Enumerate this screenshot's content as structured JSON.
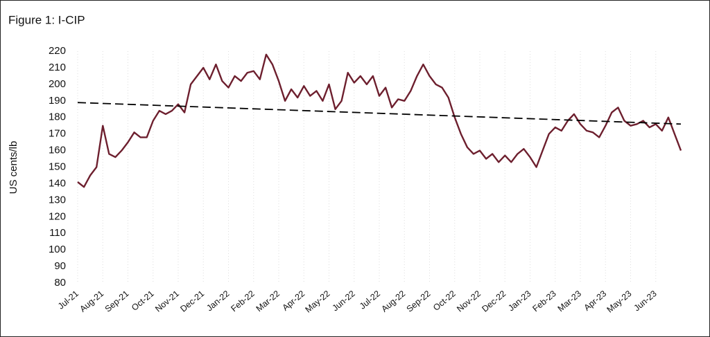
{
  "chart_data": {
    "type": "line",
    "title": "Figure 1: I-CIP",
    "y_label": "US cents/lb",
    "categories": [
      "Jul-21",
      null,
      null,
      null,
      "Aug-21",
      null,
      null,
      null,
      "Sep-21",
      null,
      null,
      null,
      "Oct-21",
      null,
      null,
      null,
      "Nov-21",
      null,
      null,
      null,
      "Dec-21",
      null,
      null,
      null,
      "Jan-22",
      null,
      null,
      null,
      "Feb-22",
      null,
      null,
      null,
      "Mar-22",
      null,
      null,
      null,
      "Apr-22",
      null,
      null,
      null,
      "May-22",
      null,
      null,
      null,
      "Jun-22",
      null,
      null,
      null,
      "Jul-22",
      null,
      null,
      null,
      "Aug-22",
      null,
      null,
      null,
      "Sep-22",
      null,
      null,
      null,
      "Oct-22",
      null,
      null,
      null,
      "Nov-22",
      null,
      null,
      null,
      "Dec-22",
      null,
      null,
      null,
      "Jan-23",
      null,
      null,
      null,
      "Feb-23",
      null,
      null,
      null,
      "Mar-23",
      null,
      null,
      null,
      "Apr-23",
      null,
      null,
      null,
      "May-23",
      null,
      null,
      null,
      "Jun-23",
      null,
      null,
      null,
      null
    ],
    "series": [
      {
        "color": "#6d1f2e",
        "values": [
          141,
          138,
          145,
          150,
          175,
          158,
          156,
          160,
          165,
          171,
          168,
          168,
          178,
          184,
          182,
          184,
          188,
          183,
          200,
          205,
          210,
          203,
          212,
          202,
          198,
          205,
          202,
          207,
          208,
          203,
          218,
          212,
          202,
          190,
          197,
          192,
          199,
          193,
          196,
          190,
          200,
          185,
          190,
          207,
          201,
          205,
          200,
          205,
          193,
          198,
          186,
          191,
          190,
          196,
          205,
          212,
          205,
          200,
          198,
          192,
          180,
          170,
          162,
          158,
          160,
          155,
          158,
          153,
          157,
          153,
          158,
          161,
          156,
          150,
          160,
          170,
          174,
          172,
          178,
          182,
          176,
          172,
          171,
          168,
          175,
          183,
          186,
          178,
          175,
          176,
          178,
          174,
          176,
          172,
          180,
          170,
          160
        ]
      }
    ],
    "trend": {
      "color": "#000000",
      "values": [
        189,
        176
      ]
    },
    "ylim": [
      80,
      220
    ],
    "yticks": [
      80,
      90,
      100,
      110,
      120,
      130,
      140,
      150,
      160,
      170,
      180,
      190,
      200,
      210,
      220
    ]
  }
}
